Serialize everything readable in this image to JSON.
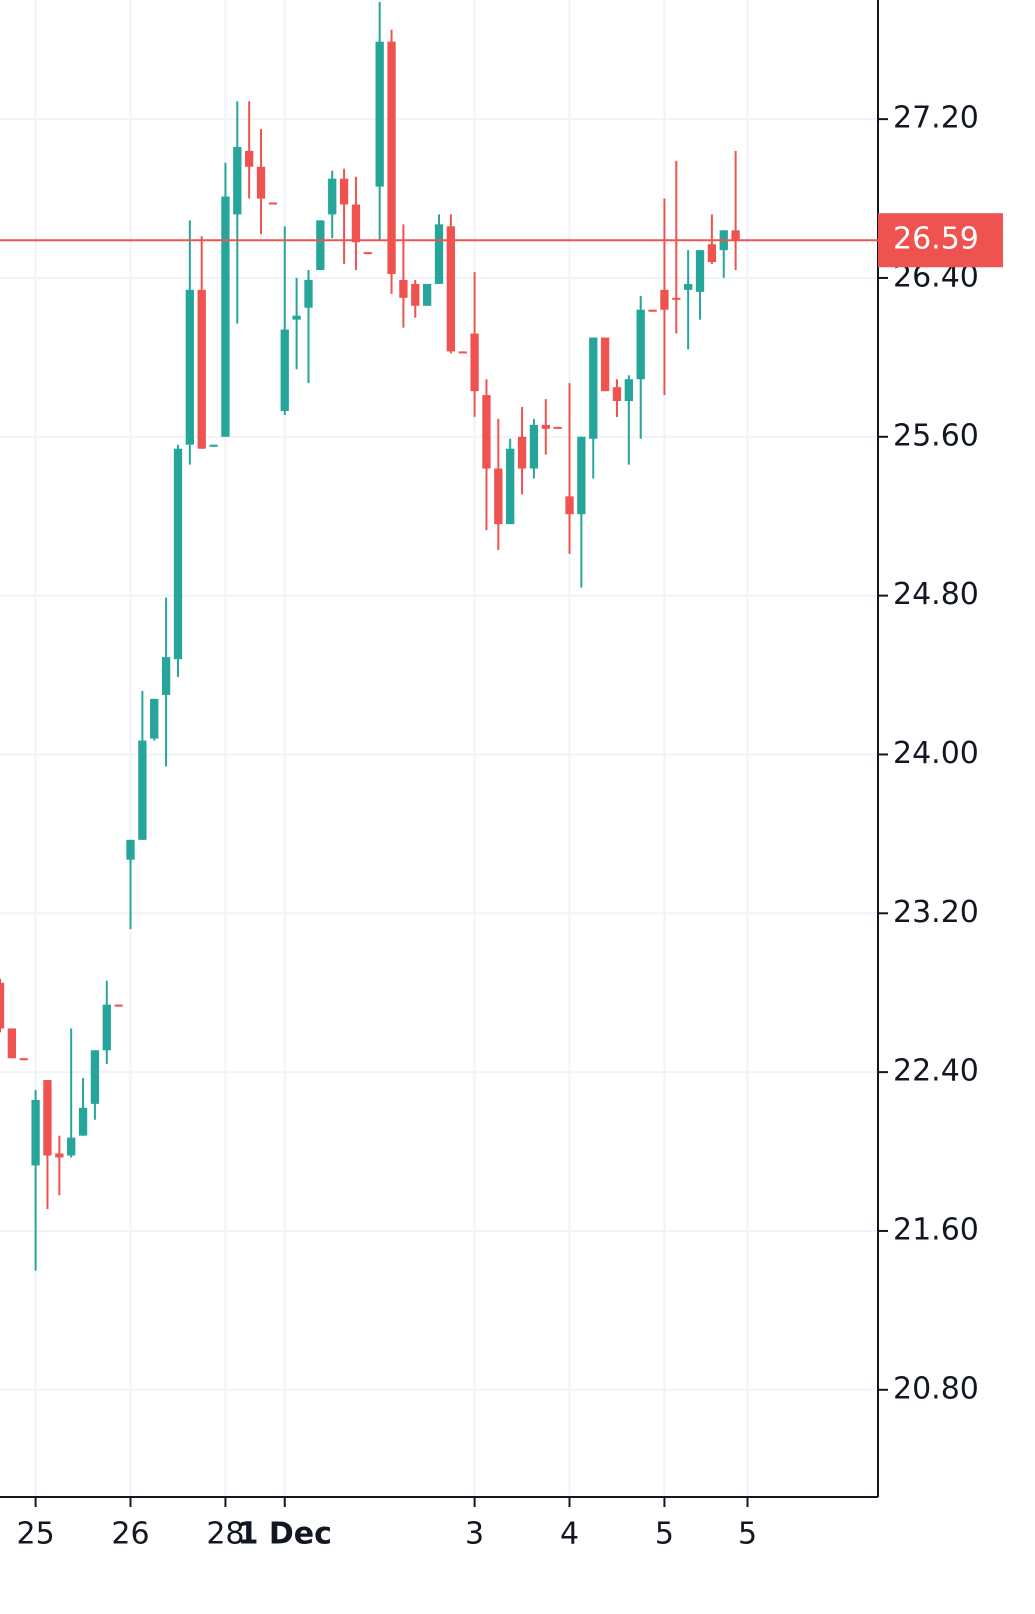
{
  "chart_data": {
    "type": "candlestick",
    "x": [
      0,
      1,
      2,
      3,
      4,
      5,
      6,
      7,
      8,
      9,
      10,
      11,
      12,
      13,
      14,
      15,
      16,
      17,
      18,
      19,
      20,
      21,
      22,
      23,
      24,
      25,
      26,
      27,
      28,
      29,
      30,
      31,
      32,
      33,
      34,
      35,
      36,
      37,
      38,
      39,
      40,
      41,
      42,
      43,
      44,
      45,
      46,
      47,
      48,
      49,
      50,
      51,
      52,
      53,
      54,
      55,
      56,
      57,
      58,
      59,
      60,
      61,
      62
    ],
    "open": [
      22.85,
      22.62,
      22.47,
      21.93,
      22.36,
      21.99,
      21.98,
      22.08,
      22.24,
      22.51,
      22.74,
      23.47,
      23.57,
      24.08,
      24.3,
      24.48,
      25.56,
      26.34,
      25.55,
      25.6,
      26.72,
      27.04,
      26.96,
      26.78,
      25.73,
      26.19,
      26.25,
      26.44,
      26.72,
      26.9,
      26.77,
      26.53,
      26.86,
      27.59,
      26.39,
      26.37,
      26.26,
      26.37,
      26.66,
      26.03,
      26.12,
      25.81,
      25.44,
      25.16,
      25.6,
      25.44,
      25.66,
      25.65,
      25.3,
      25.21,
      25.59,
      26.1,
      25.85,
      25.78,
      25.89,
      26.24,
      26.34,
      26.3,
      26.34,
      26.33,
      26.57,
      26.54,
      26.64
    ],
    "high": [
      22.87,
      22.62,
      22.47,
      22.31,
      22.36,
      22.08,
      22.62,
      22.37,
      22.51,
      22.86,
      22.74,
      23.57,
      24.32,
      24.28,
      24.79,
      25.56,
      26.69,
      26.61,
      25.56,
      26.98,
      27.29,
      27.29,
      27.15,
      26.78,
      26.66,
      26.4,
      26.44,
      26.69,
      26.94,
      26.95,
      26.91,
      26.53,
      27.79,
      27.65,
      26.67,
      26.39,
      26.37,
      26.72,
      26.72,
      26.03,
      26.43,
      25.89,
      25.69,
      25.59,
      25.75,
      25.69,
      25.79,
      25.65,
      25.87,
      25.6,
      26.1,
      26.1,
      25.89,
      25.91,
      26.31,
      26.24,
      26.8,
      26.99,
      26.54,
      26.54,
      26.72,
      26.64,
      27.04
    ],
    "low": [
      22.6,
      22.47,
      22.46,
      21.4,
      21.71,
      21.78,
      21.97,
      22.08,
      22.16,
      22.44,
      22.73,
      23.12,
      23.57,
      24.07,
      23.94,
      24.39,
      25.46,
      25.54,
      25.55,
      25.6,
      26.17,
      26.8,
      26.62,
      26.77,
      25.71,
      25.94,
      25.87,
      26.44,
      26.6,
      26.47,
      26.44,
      26.52,
      26.59,
      26.32,
      26.15,
      26.2,
      26.26,
      26.37,
      26.02,
      26.02,
      25.7,
      25.13,
      25.03,
      25.16,
      25.31,
      25.39,
      25.51,
      25.64,
      25.01,
      24.84,
      25.39,
      25.83,
      25.7,
      25.46,
      25.59,
      26.23,
      25.81,
      26.12,
      26.04,
      26.19,
      26.47,
      26.4,
      26.44
    ],
    "close": [
      22.62,
      22.47,
      22.46,
      22.26,
      21.98,
      21.97,
      22.07,
      22.22,
      22.51,
      22.74,
      22.73,
      23.57,
      24.07,
      24.28,
      24.49,
      25.54,
      26.34,
      25.54,
      25.56,
      26.81,
      27.06,
      26.96,
      26.8,
      26.77,
      26.14,
      26.21,
      26.39,
      26.69,
      26.9,
      26.77,
      26.58,
      26.52,
      27.59,
      26.42,
      26.3,
      26.26,
      26.37,
      26.67,
      26.03,
      26.02,
      25.83,
      25.44,
      25.16,
      25.54,
      25.44,
      25.66,
      25.64,
      25.64,
      25.21,
      25.6,
      26.1,
      25.83,
      25.78,
      25.89,
      26.24,
      26.23,
      26.24,
      26.29,
      26.37,
      26.54,
      26.48,
      26.64,
      26.59
    ],
    "up_color": "#26a69a",
    "down_color": "#ef5350",
    "xlim": [
      0,
      74
    ],
    "xticks": [
      {
        "value": 3,
        "label": "25"
      },
      {
        "value": 11,
        "label": "26"
      },
      {
        "value": 19,
        "label": "28"
      },
      {
        "value": 24,
        "label": "1 Dec"
      },
      {
        "value": 40,
        "label": "3"
      },
      {
        "value": 48,
        "label": "4"
      },
      {
        "value": 56,
        "label": "5"
      },
      {
        "value": 63,
        "label": "5"
      }
    ],
    "ylim": [
      20.26,
      27.8
    ],
    "yticks": [
      {
        "value": 20.8,
        "label": "20.80"
      },
      {
        "value": 21.6,
        "label": "21.60"
      },
      {
        "value": 22.4,
        "label": "22.40"
      },
      {
        "value": 23.2,
        "label": "23.20"
      },
      {
        "value": 24,
        "label": "24.00"
      },
      {
        "value": 24.8,
        "label": "24.80"
      },
      {
        "value": 25.6,
        "label": "25.60"
      },
      {
        "value": 26.4,
        "label": "26.40"
      },
      {
        "value": 27.2,
        "label": "27.20"
      }
    ],
    "grid": true,
    "last_price": 26.59,
    "last_price_color": "#ef5350"
  }
}
